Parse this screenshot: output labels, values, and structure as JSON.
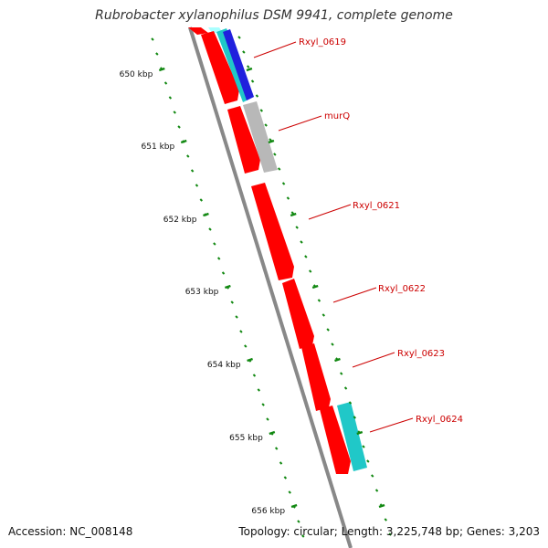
{
  "header": {
    "title": "Rubrobacter xylanophilus DSM 9941, complete genome"
  },
  "footer": {
    "accession": "Accession: NC_008148",
    "summary": "Topology: circular; Length: 3,225,748 bp; Genes: 3,203"
  },
  "ruler": {
    "unit": "kbp",
    "labels": [
      "650 kbp",
      "651 kbp",
      "652 kbp",
      "653 kbp",
      "654 kbp",
      "655 kbp",
      "656 kbp"
    ]
  },
  "genes": [
    {
      "label": "Rxyl_0619"
    },
    {
      "label": "murQ"
    },
    {
      "label": "Rxyl_0621"
    },
    {
      "label": "Rxyl_0622"
    },
    {
      "label": "Rxyl_0623"
    },
    {
      "label": "Rxyl_0624"
    }
  ],
  "colors": {
    "cds": "#ff0000",
    "gene_grey": "#b8b8b8",
    "gene_cyan": "#20c8c8",
    "gene_blue": "#2020dd",
    "backbone": "#888888",
    "ticks": "#118811",
    "label_text": "#cc0000",
    "ruler_text": "#111111"
  }
}
